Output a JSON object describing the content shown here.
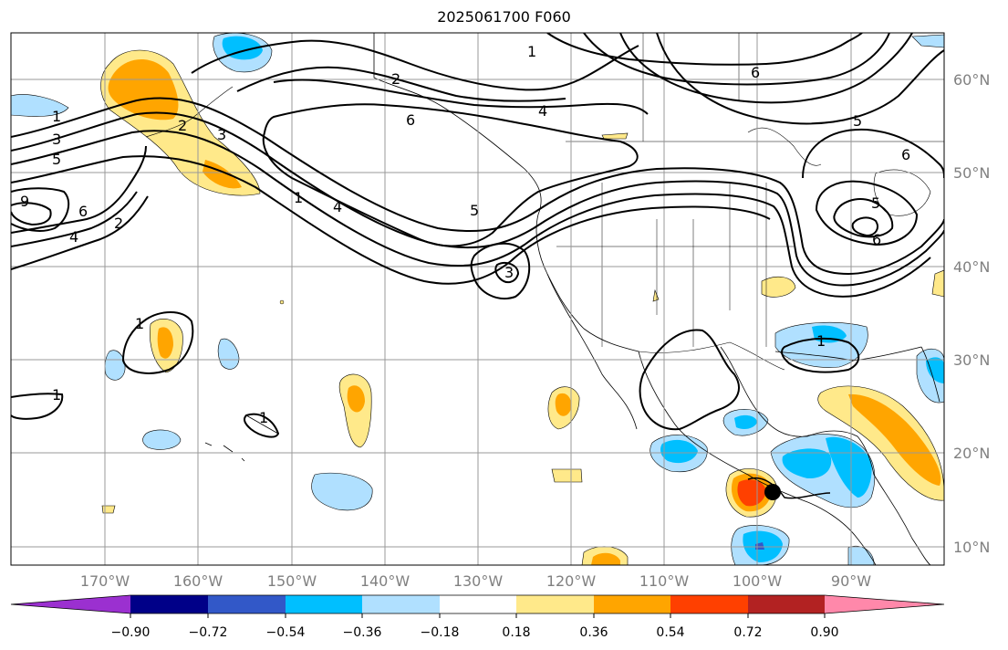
{
  "title": "2025061700 F060",
  "latitude_labels": [
    "60°N",
    "50°N",
    "40°N",
    "30°N",
    "20°N",
    "10°N"
  ],
  "longitude_labels": [
    "170°W",
    "160°W",
    "150°W",
    "140°W",
    "130°W",
    "120°W",
    "110°W",
    "100°W",
    "90°W"
  ],
  "colorbar": {
    "colors": [
      "#9b30d0",
      "#000088",
      "#3258c8",
      "#00bfff",
      "#b0e0ff",
      "#ffffff",
      "#ffe98a",
      "#ffa500",
      "#ff4000",
      "#b22222",
      "#ff88aa"
    ],
    "tick_labels": [
      "−0.90",
      "−0.72",
      "−0.54",
      "−0.36",
      "−0.18",
      "0.18",
      "0.36",
      "0.54",
      "0.72",
      "0.90"
    ]
  },
  "contour_labels": [
    "1",
    "2",
    "3",
    "4",
    "5",
    "6",
    "9"
  ],
  "marker": {
    "color": "#000000",
    "location": "15.9°N 98.8°W"
  }
}
